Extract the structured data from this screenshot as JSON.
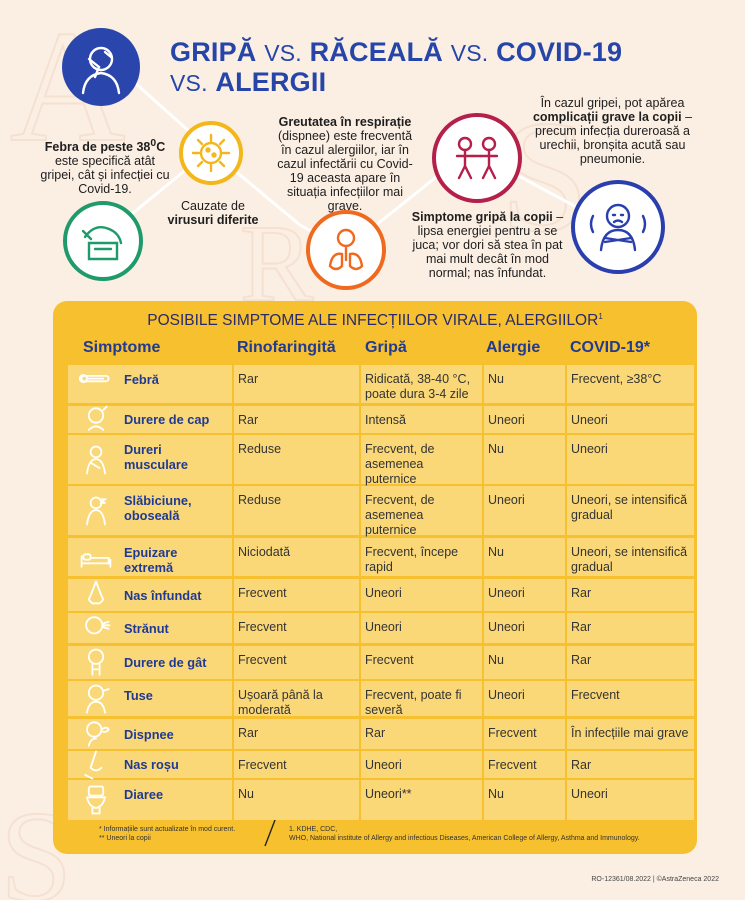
{
  "title": {
    "word1": "GRIPĂ",
    "vs1": "VS.",
    "word2": "RĂCEALĂ",
    "vs2": "VS.",
    "word3": "COVID-19",
    "vs3": "VS.",
    "word4": "ALERGII"
  },
  "notes": {
    "fever_bold": "Febra de peste 38",
    "fever_sup": "0",
    "fever_c": "C",
    "fever_rest": "este specifică atât gripei, cât și infecției cu Covid-19.",
    "virus_line1": "Cauzate de",
    "virus_bold": "virusuri diferite",
    "breath_bold": "Greutatea în respirație",
    "breath_rest": "(dispnee) este frecventă în cazul alergiilor, iar în cazul infectării cu Covid-19 aceasta apare în situația infecțiilor mai grave.",
    "children_intro": "În cazul gripei, pot apărea",
    "children_bold": "complicații grave la copii",
    "children_rest": "– precum infecția dureroasă a urechii, bronșita acută sau pneumonie.",
    "kids_bold": "Simptome gripă la copii",
    "kids_rest": "– lipsa energiei pentru a se juca; vor dori să stea în pat mai mult decât în mod normal; nas înfundat."
  },
  "colors": {
    "background": "#fbeee3",
    "panel": "#f6c02f",
    "cell": "#fbd877",
    "blue": "#2545a8",
    "green": "#1f9a6a",
    "yellow": "#f3b71b",
    "orange": "#ef6a1f",
    "crimson": "#b4204a",
    "navy": "#2a3fae"
  },
  "icons": [
    "person-headache-icon",
    "virus-icon",
    "fever-child-icon",
    "lungs-icon",
    "children-playing-icon",
    "sick-child-icon"
  ],
  "table": {
    "title": "POSIBILE SIMPTOME ALE INFECȚIILOR VIRALE, ALERGIILOR",
    "title_sup": "1",
    "headers": [
      "Simptome",
      "Rinofaringită",
      "Gripă",
      "Alergie",
      "COVID-19*"
    ],
    "rows": [
      {
        "symptom": "Febră",
        "icon": "thermometer-icon",
        "rino": "Rar",
        "gripa": "Ridicată, 38-40 °C, poate dura 3-4 zile",
        "alergie": "Nu",
        "covid": "Frecvent, ≥38°C"
      },
      {
        "symptom": "Durere de cap",
        "icon": "headache-icon",
        "rino": "Rar",
        "gripa": "Intensă",
        "alergie": "Uneori",
        "covid": "Uneori"
      },
      {
        "symptom": "Dureri musculare",
        "icon": "muscle-pain-icon",
        "rino": "Reduse",
        "gripa": "Frecvent, de asemenea puternice",
        "alergie": "Nu",
        "covid": "Uneori"
      },
      {
        "symptom": "Slăbiciune, oboseală",
        "icon": "fatigue-icon",
        "rino": "Reduse",
        "gripa": "Frecvent, de asemenea puternice",
        "alergie": "Uneori",
        "covid": "Uneori, se intensifică gradual"
      },
      {
        "symptom": "Epuizare extremă",
        "icon": "bed-icon",
        "rino": "Niciodată",
        "gripa": "Frecvent, începe rapid",
        "alergie": "Nu",
        "covid": "Uneori, se intensifică gradual"
      },
      {
        "symptom": "Nas înfundat",
        "icon": "nose-icon",
        "rino": "Frecvent",
        "gripa": "Uneori",
        "alergie": "Uneori",
        "covid": "Rar"
      },
      {
        "symptom": "Strănut",
        "icon": "sneeze-icon",
        "rino": "Frecvent",
        "gripa": "Uneori",
        "alergie": "Uneori",
        "covid": "Rar"
      },
      {
        "symptom": "Durere de gât",
        "icon": "sore-throat-icon",
        "rino": "Frecvent",
        "gripa": "Frecvent",
        "alergie": "Nu",
        "covid": "Rar"
      },
      {
        "symptom": "Tuse",
        "icon": "cough-icon",
        "rino": "Ușoară până la moderată",
        "gripa": "Frecvent, poate fi severă",
        "alergie": "Uneori",
        "covid": "Frecvent"
      },
      {
        "symptom": "Dispnee",
        "icon": "breathing-icon",
        "rino": "Rar",
        "gripa": "Rar",
        "alergie": "Frecvent",
        "covid": "În infecțiile mai grave"
      },
      {
        "symptom": "Nas roșu",
        "icon": "red-nose-icon",
        "rino": "Frecvent",
        "gripa": "Uneori",
        "alergie": "Frecvent",
        "covid": "Rar"
      },
      {
        "symptom": "Diaree",
        "icon": "toilet-icon",
        "rino": "Nu",
        "gripa": "Uneori**",
        "alergie": "Nu",
        "covid": "Uneori"
      }
    ]
  },
  "footnotes": {
    "note1": "* Informațiile sunt actualizate în mod curent.",
    "note2": "** Uneori la copii",
    "ref1": "1. KDHE, CDC,",
    "ref2": "WHO, National institute of Allergy and infectious Diseases, American College of Allergy, Asthma and Immunology."
  },
  "copyright": "RO-12361/08.2022 | ©AstraZeneca 2022"
}
